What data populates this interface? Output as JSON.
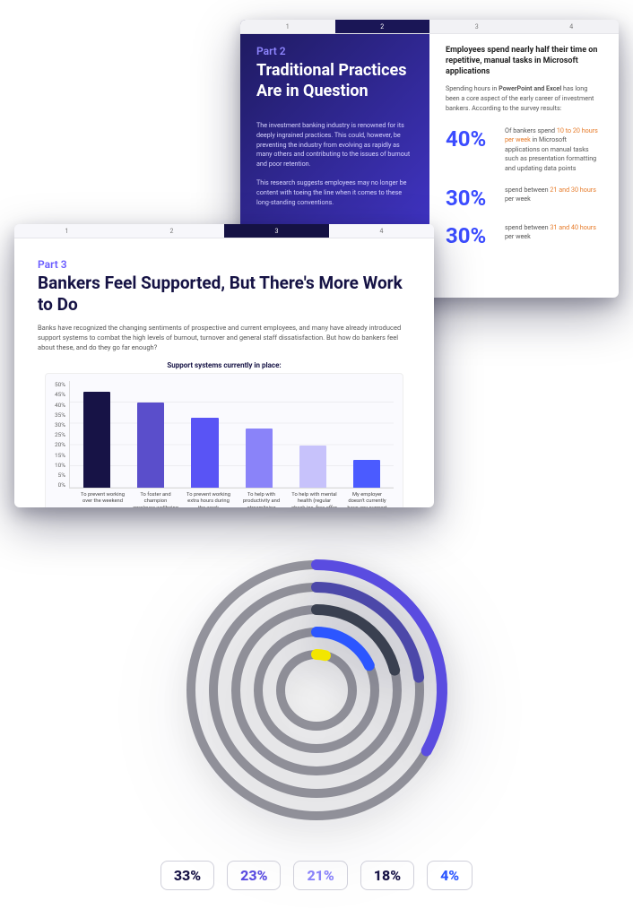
{
  "slide2": {
    "tabs": [
      "1",
      "2",
      "3",
      "4"
    ],
    "active_tab_index": 1,
    "left": {
      "kicker": "Part 2",
      "title": "Traditional Practices Are in Question",
      "paragraphs": [
        "The investment banking industry is renowned for its deeply ingrained practices. This could, however, be preventing the industry from evolving as rapidly as many others and contributing to the issues of burnout and poor retention.",
        "This research suggests employees may no longer be content with toeing the line when it comes to these long-standing conventions."
      ],
      "bg_gradient_from": "#1e1a5e",
      "bg_gradient_to": "#4438d8",
      "kicker_color": "#8f86ff"
    },
    "right": {
      "lead": "Employees spend nearly half their time on repetitive, manual tasks in Microsoft applications",
      "intro_prefix": "Spending hours in ",
      "intro_bold": "PowerPoint and Excel",
      "intro_suffix": " has long been a core aspect of the early career of investment bankers. According to the survey results:",
      "stats": [
        {
          "pct": "40%",
          "pre": "Of bankers spend ",
          "highlight": "10 to 20 hours per week",
          "post": " in Microsoft applications on manual tasks such as presentation formatting and updating data points"
        },
        {
          "pct": "30%",
          "pre": "spend between ",
          "highlight": "21 and 30 hours",
          "post": " per week"
        },
        {
          "pct": "30%",
          "pre": "spend between ",
          "highlight": "31 and 40 hours",
          "post": " per week"
        }
      ],
      "pct_color": "#3b4cff",
      "highlight_color": "#e67a28"
    }
  },
  "slide3": {
    "tabs": [
      "1",
      "2",
      "3",
      "4"
    ],
    "active_tab_index": 2,
    "kicker": "Part 3",
    "title": "Bankers Feel Supported, But There's More Work to Do",
    "intro": "Banks have recognized the changing sentiments of prospective and current employees, and many have already introduced support systems to combat the high levels of burnout, turnover and general staff dissatisfaction. But how do bankers feel about these, and do they go far enough?",
    "chart": {
      "type": "bar",
      "title": "Support systems currently in place:",
      "ymax": 50,
      "ytick_step": 5,
      "ytick_suffix": "%",
      "categories": [
        "To prevent working over the weekend",
        "To foster and champion employee wellbeing (gym membership, meditation apps, etc.)",
        "To prevent working extra hours during the week",
        "To help with productivity and streamlining workflows",
        "To help with mental health (regular check-ins, free offer of medical consultations, etc.)",
        "My employer doesn't currently have any support system in place"
      ],
      "values": [
        45,
        40,
        33,
        28,
        20,
        13
      ],
      "bar_colors": [
        "#171346",
        "#5a4ecb",
        "#5954f5",
        "#8a83f9",
        "#c7c2fb",
        "#4b5bff"
      ],
      "panel_bg": "#fafafe",
      "grid_color": "#e9e9ef"
    },
    "kicker_color": "#6a5cff",
    "title_color": "#151244"
  },
  "radial": {
    "type": "radial-bar",
    "background_color": "#ffffff",
    "track_color": "#545463",
    "track_width": 10,
    "start_angle_deg": -90,
    "rings": [
      {
        "radius": 140,
        "pct": 33,
        "color": "#5a4ce0"
      },
      {
        "radius": 115,
        "pct": 23,
        "color": "#4c48a9"
      },
      {
        "radius": 90,
        "pct": 21,
        "color": "#3a4050"
      },
      {
        "radius": 65,
        "pct": 18,
        "color": "#2c56ff"
      },
      {
        "radius": 40,
        "pct": 4,
        "color": "#f2e600"
      }
    ]
  },
  "legend": {
    "chips": [
      {
        "text": "33%",
        "color": "#171346"
      },
      {
        "text": "23%",
        "color": "#5a4ce0"
      },
      {
        "text": "21%",
        "color": "#8a83f9"
      },
      {
        "text": "18%",
        "color": "#171346"
      },
      {
        "text": "4%",
        "color": "#2c56ff"
      }
    ],
    "border_color": "#d0d0da"
  }
}
